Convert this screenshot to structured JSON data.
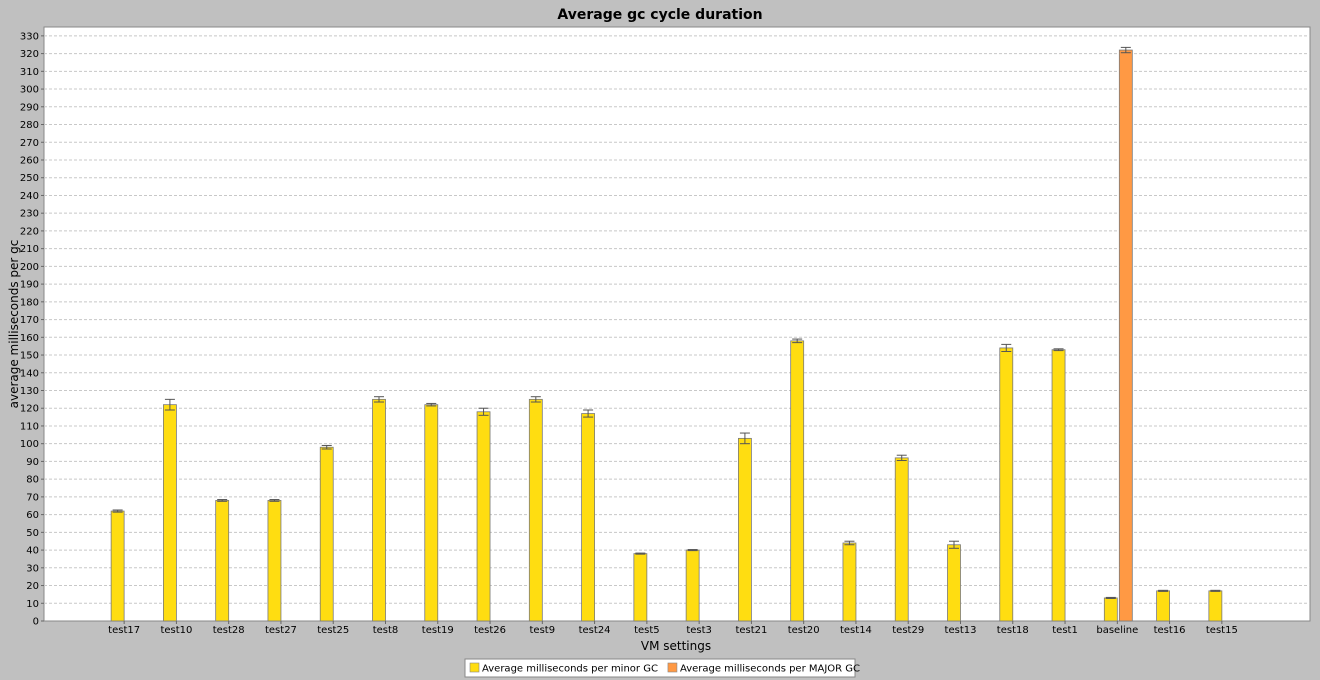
{
  "chart_data": {
    "type": "bar",
    "title": "Average gc cycle duration",
    "xlabel": "VM settings",
    "ylabel": "average milliseconds per gc",
    "ylim": [
      0,
      335
    ],
    "ytick_step": 10,
    "grid": true,
    "legend_position": "bottom",
    "categories": [
      "test17",
      "test10",
      "test28",
      "test27",
      "test25",
      "test8",
      "test19",
      "test26",
      "test9",
      "test24",
      "test5",
      "test3",
      "test21",
      "test20",
      "test14",
      "test29",
      "test13",
      "test18",
      "test1",
      "baseline",
      "test16",
      "test15"
    ],
    "series": [
      {
        "name": "Average milliseconds per minor GC",
        "color": "#ffdd11",
        "values": [
          62,
          122,
          68,
          68,
          98,
          125,
          122,
          118,
          125,
          117,
          38,
          40,
          103,
          158,
          44,
          92,
          43,
          154,
          153,
          13,
          17,
          17
        ],
        "error": [
          0.6,
          3,
          0.5,
          0.5,
          1,
          1.5,
          0.7,
          2,
          1.5,
          2,
          0.3,
          0.3,
          3,
          1,
          1,
          1.5,
          2,
          2,
          0.5,
          0.3,
          0.3,
          0.3
        ]
      },
      {
        "name": "Average milliseconds per MAJOR GC",
        "color": "#ff9944",
        "values": [
          null,
          null,
          null,
          null,
          null,
          null,
          null,
          null,
          null,
          null,
          null,
          null,
          null,
          null,
          null,
          null,
          null,
          null,
          null,
          322,
          null,
          null
        ],
        "error": [
          null,
          null,
          null,
          null,
          null,
          null,
          null,
          null,
          null,
          null,
          null,
          null,
          null,
          null,
          null,
          null,
          null,
          null,
          null,
          1.5,
          null,
          null
        ]
      }
    ]
  }
}
